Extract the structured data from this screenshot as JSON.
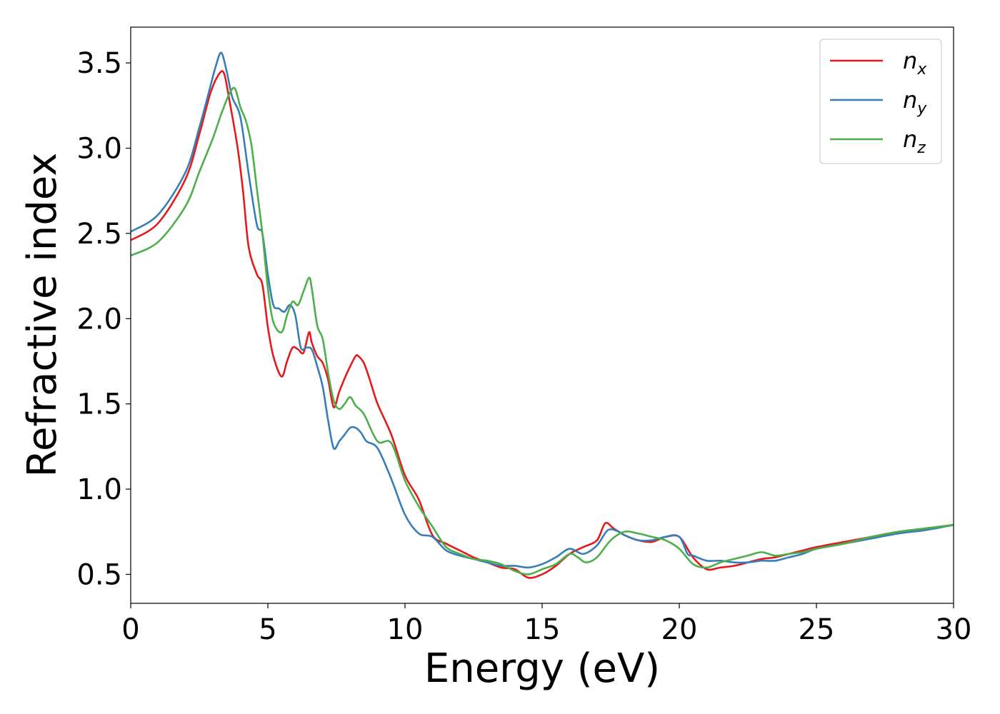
{
  "chart_data": {
    "type": "line",
    "title": "",
    "xlabel": "Energy (eV)",
    "ylabel": "Refractive index",
    "xlim": [
      0,
      30
    ],
    "ylim": [
      0.33,
      3.71
    ],
    "xticks": [
      0,
      5,
      10,
      15,
      20,
      25,
      30
    ],
    "xtick_labels": [
      "0",
      "5",
      "10",
      "15",
      "20",
      "25",
      "30"
    ],
    "yticks": [
      0.5,
      1.0,
      1.5,
      2.0,
      2.5,
      3.0,
      3.5
    ],
    "ytick_labels": [
      "0.5",
      "1.0",
      "1.5",
      "2.0",
      "2.5",
      "3.0",
      "3.5"
    ],
    "grid": false,
    "legend_position": "top-right",
    "series": [
      {
        "name": "n_x",
        "legend_main": "n",
        "legend_sub": "x",
        "color": "#e41a1c",
        "x": [
          0,
          1,
          2,
          2.5,
          2.9,
          3.2,
          3.4,
          3.6,
          3.9,
          4.1,
          4.3,
          4.6,
          4.8,
          5.0,
          5.2,
          5.5,
          5.7,
          5.9,
          6.1,
          6.3,
          6.5,
          6.6,
          6.8,
          7.0,
          7.2,
          7.4,
          7.6,
          7.8,
          8.0,
          8.2,
          8.3,
          8.5,
          8.7,
          9.0,
          9.5,
          10.0,
          10.5,
          11.0,
          11.5,
          12.0,
          12.5,
          13.0,
          13.5,
          14.0,
          14.5,
          15.0,
          15.5,
          16.0,
          16.5,
          17.0,
          17.3,
          17.6,
          18.0,
          18.5,
          19.0,
          19.5,
          20.0,
          20.5,
          21.0,
          21.5,
          22.0,
          22.5,
          23.0,
          23.5,
          24.0,
          24.5,
          25.0,
          26.0,
          27.0,
          28.0,
          29.0,
          30.0
        ],
        "y": [
          2.46,
          2.56,
          2.82,
          3.08,
          3.32,
          3.43,
          3.44,
          3.28,
          3.0,
          2.74,
          2.42,
          2.26,
          2.2,
          1.95,
          1.78,
          1.66,
          1.75,
          1.83,
          1.82,
          1.8,
          1.92,
          1.86,
          1.78,
          1.74,
          1.64,
          1.48,
          1.57,
          1.65,
          1.72,
          1.78,
          1.78,
          1.74,
          1.65,
          1.5,
          1.32,
          1.08,
          0.94,
          0.73,
          0.68,
          0.64,
          0.6,
          0.57,
          0.54,
          0.53,
          0.48,
          0.5,
          0.55,
          0.62,
          0.66,
          0.7,
          0.8,
          0.77,
          0.73,
          0.7,
          0.69,
          0.72,
          0.72,
          0.6,
          0.53,
          0.54,
          0.55,
          0.57,
          0.59,
          0.6,
          0.62,
          0.64,
          0.66,
          0.69,
          0.72,
          0.75,
          0.77,
          0.79
        ]
      },
      {
        "name": "n_y",
        "legend_main": "n",
        "legend_sub": "y",
        "color": "#377eb8",
        "x": [
          0,
          1,
          2,
          2.5,
          2.9,
          3.1,
          3.3,
          3.5,
          3.7,
          4.0,
          4.3,
          4.6,
          4.8,
          5.0,
          5.2,
          5.4,
          5.6,
          5.8,
          6.0,
          6.2,
          6.4,
          6.6,
          6.8,
          7.0,
          7.2,
          7.4,
          7.6,
          7.8,
          8.0,
          8.2,
          8.4,
          8.6,
          9.0,
          9.5,
          10.0,
          10.5,
          11.0,
          11.5,
          12.0,
          12.5,
          13.0,
          13.5,
          14.0,
          14.5,
          15.0,
          15.5,
          16.0,
          16.5,
          17.0,
          17.4,
          17.8,
          18.0,
          18.5,
          19.0,
          19.5,
          20.0,
          20.3,
          20.5,
          21.0,
          21.5,
          22.0,
          22.5,
          23.0,
          23.5,
          24.0,
          24.5,
          25.0,
          26.0,
          27.0,
          28.0,
          29.0,
          30.0
        ],
        "y": [
          2.51,
          2.61,
          2.86,
          3.12,
          3.36,
          3.48,
          3.56,
          3.45,
          3.3,
          3.18,
          2.85,
          2.55,
          2.5,
          2.26,
          2.08,
          2.06,
          2.04,
          2.08,
          2.02,
          1.83,
          1.83,
          1.82,
          1.72,
          1.6,
          1.4,
          1.24,
          1.28,
          1.32,
          1.36,
          1.36,
          1.33,
          1.28,
          1.24,
          1.06,
          0.85,
          0.74,
          0.72,
          0.64,
          0.61,
          0.59,
          0.57,
          0.55,
          0.55,
          0.54,
          0.56,
          0.6,
          0.65,
          0.62,
          0.67,
          0.76,
          0.75,
          0.73,
          0.7,
          0.7,
          0.72,
          0.72,
          0.62,
          0.61,
          0.58,
          0.58,
          0.57,
          0.57,
          0.58,
          0.58,
          0.6,
          0.62,
          0.65,
          0.68,
          0.71,
          0.74,
          0.76,
          0.79
        ]
      },
      {
        "name": "n_z",
        "legend_main": "n",
        "legend_sub": "z",
        "color": "#4daf4a",
        "x": [
          0,
          1,
          2,
          2.5,
          3.0,
          3.3,
          3.6,
          3.8,
          4.0,
          4.2,
          4.4,
          4.6,
          4.8,
          5.0,
          5.2,
          5.5,
          5.7,
          5.9,
          6.1,
          6.3,
          6.5,
          6.6,
          6.8,
          7.0,
          7.2,
          7.4,
          7.6,
          7.8,
          8.0,
          8.2,
          8.5,
          9.0,
          9.5,
          10.0,
          10.5,
          11.0,
          11.5,
          12.0,
          12.5,
          13.0,
          13.5,
          14.0,
          14.5,
          15.0,
          15.5,
          16.0,
          16.3,
          16.6,
          17.0,
          17.5,
          18.0,
          18.5,
          19.0,
          19.5,
          20.0,
          20.5,
          21.0,
          21.5,
          22.0,
          22.5,
          23.0,
          23.5,
          24.0,
          24.5,
          25.0,
          26.0,
          27.0,
          28.0,
          29.0,
          30.0
        ],
        "y": [
          2.37,
          2.45,
          2.66,
          2.86,
          3.06,
          3.2,
          3.32,
          3.35,
          3.24,
          3.16,
          3.02,
          2.76,
          2.5,
          2.18,
          1.98,
          1.92,
          2.02,
          2.1,
          2.08,
          2.16,
          2.24,
          2.18,
          1.96,
          1.88,
          1.68,
          1.52,
          1.47,
          1.5,
          1.54,
          1.49,
          1.44,
          1.28,
          1.27,
          1.05,
          0.9,
          0.78,
          0.66,
          0.62,
          0.59,
          0.58,
          0.56,
          0.52,
          0.5,
          0.53,
          0.56,
          0.62,
          0.6,
          0.57,
          0.6,
          0.7,
          0.75,
          0.74,
          0.72,
          0.7,
          0.65,
          0.56,
          0.54,
          0.57,
          0.59,
          0.61,
          0.63,
          0.61,
          0.62,
          0.63,
          0.65,
          0.68,
          0.72,
          0.75,
          0.77,
          0.79
        ]
      }
    ]
  }
}
